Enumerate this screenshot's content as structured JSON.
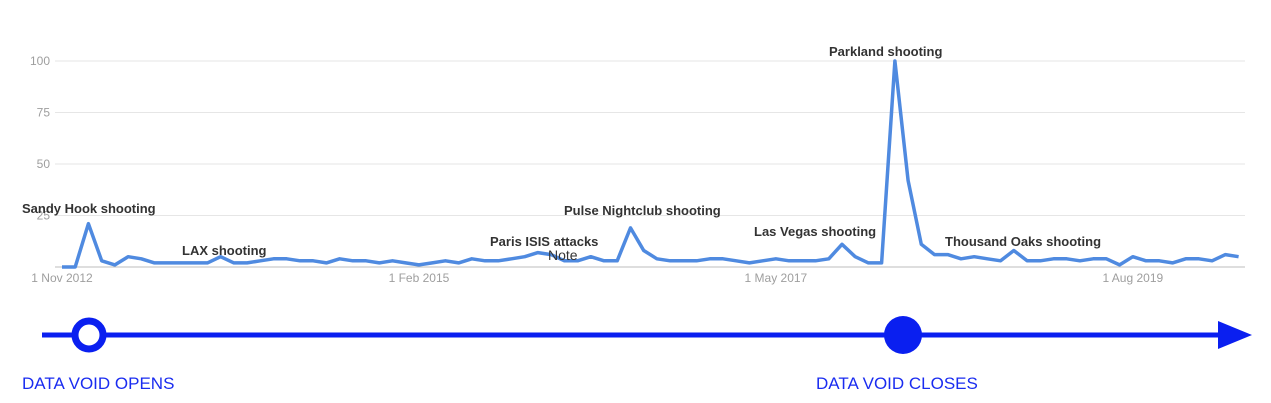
{
  "chart_data": {
    "type": "line",
    "categories": [
      "1 Nov 2012",
      null,
      null,
      null,
      null,
      null,
      null,
      null,
      null,
      null,
      null,
      null,
      null,
      null,
      null,
      null,
      null,
      null,
      null,
      null,
      null,
      null,
      null,
      null,
      null,
      null,
      null,
      "1 Feb 2015",
      null,
      null,
      null,
      null,
      null,
      null,
      null,
      null,
      null,
      null,
      null,
      null,
      null,
      null,
      null,
      null,
      null,
      null,
      null,
      null,
      null,
      null,
      null,
      null,
      null,
      null,
      "1 May 2017",
      null,
      null,
      null,
      null,
      null,
      null,
      null,
      null,
      null,
      null,
      null,
      null,
      null,
      null,
      null,
      null,
      null,
      null,
      null,
      null,
      null,
      null,
      null,
      null,
      null,
      null,
      "1 Aug 2019",
      null,
      null,
      null,
      null,
      null,
      null,
      null,
      null
    ],
    "series": [
      {
        "color": "#4f8ae0",
        "values": [
          0,
          0,
          21,
          3,
          1,
          5,
          4,
          2,
          2,
          2,
          2,
          2,
          5,
          2,
          2,
          3,
          4,
          4,
          3,
          3,
          2,
          4,
          3,
          3,
          2,
          3,
          2,
          1,
          2,
          3,
          2,
          4,
          3,
          3,
          4,
          5,
          7,
          6,
          3,
          3,
          5,
          3,
          3,
          19,
          8,
          4,
          3,
          3,
          3,
          4,
          4,
          3,
          2,
          3,
          4,
          3,
          3,
          3,
          4,
          11,
          5,
          2,
          2,
          100,
          42,
          11,
          6,
          6,
          4,
          5,
          4,
          3,
          8,
          3,
          3,
          4,
          4,
          3,
          4,
          4,
          1,
          5,
          3,
          3,
          2,
          4,
          4,
          3,
          6,
          5
        ]
      }
    ],
    "ylim": [
      0,
      100
    ],
    "yticks": [
      25,
      50,
      75,
      100
    ],
    "grid": true,
    "annotations": [
      "Sandy Hook shooting",
      "LAX shooting",
      "Paris ISIS attacks",
      "Note",
      "Pulse Nightclub shooting",
      "Las Vegas shooting",
      "Parkland shooting",
      "Thousand Oaks shooting"
    ]
  },
  "timeline": {
    "start_label": "DATA VOID OPENS",
    "end_label": "DATA VOID CLOSES"
  }
}
